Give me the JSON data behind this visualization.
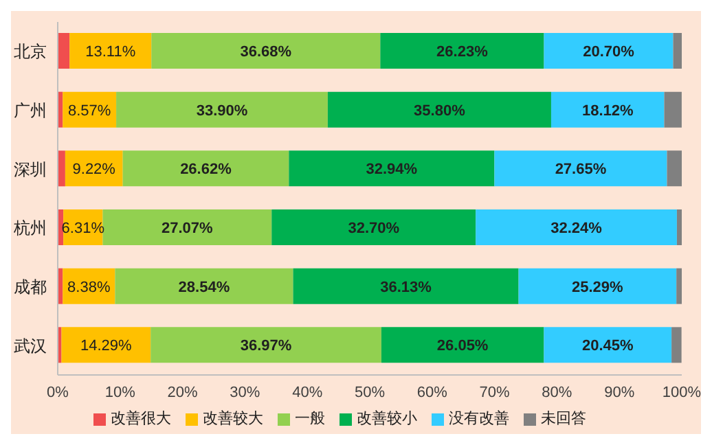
{
  "chart_data": {
    "type": "bar",
    "orientation": "horizontal",
    "stacked": true,
    "categories": [
      "北京",
      "广州",
      "深圳",
      "杭州",
      "成都",
      "武汉"
    ],
    "series": [
      {
        "name": "改善很大",
        "color": "#f04e4e",
        "values": [
          1.9,
          0.8,
          1.2,
          0.9,
          0.8,
          0.6
        ],
        "value_labels": [
          null,
          null,
          null,
          null,
          null,
          null
        ]
      },
      {
        "name": "改善较大",
        "color": "#ffc000",
        "values": [
          13.11,
          8.57,
          9.22,
          6.31,
          8.38,
          14.29
        ],
        "value_labels": [
          "13.11%",
          "8.57%",
          "9.22%",
          "6.31%",
          "8.38%",
          "14.29%"
        ]
      },
      {
        "name": "一般",
        "color": "#92d050",
        "values": [
          36.68,
          33.9,
          26.62,
          27.07,
          28.54,
          36.97
        ],
        "value_labels": [
          "36.68%",
          "33.90%",
          "26.62%",
          "27.07%",
          "28.54%",
          "36.97%"
        ]
      },
      {
        "name": "改善较小",
        "color": "#00b050",
        "values": [
          26.23,
          35.8,
          32.94,
          32.7,
          36.13,
          26.05
        ],
        "value_labels": [
          "26.23%",
          "35.80%",
          "32.94%",
          "32.70%",
          "36.13%",
          "26.05%"
        ]
      },
      {
        "name": "没有改善",
        "color": "#33ccff",
        "values": [
          20.7,
          18.12,
          27.65,
          32.24,
          25.29,
          20.45
        ],
        "value_labels": [
          "20.70%",
          "18.12%",
          "27.65%",
          "32.24%",
          "25.29%",
          "20.45%"
        ]
      },
      {
        "name": "未回答",
        "color": "#808080",
        "values": [
          1.4,
          2.8,
          2.4,
          0.8,
          0.9,
          1.6
        ],
        "value_labels": [
          null,
          null,
          null,
          null,
          null,
          null
        ]
      }
    ],
    "xlim": [
      0,
      100
    ],
    "xticks": [
      {
        "value": 0,
        "label": "0%"
      },
      {
        "value": 10,
        "label": "10%"
      },
      {
        "value": 20,
        "label": "20%"
      },
      {
        "value": 30,
        "label": "30%"
      },
      {
        "value": 40,
        "label": "40%"
      },
      {
        "value": 50,
        "label": "50%"
      },
      {
        "value": 60,
        "label": "60%"
      },
      {
        "value": 70,
        "label": "70%"
      },
      {
        "value": 80,
        "label": "80%"
      },
      {
        "value": 90,
        "label": "90%"
      },
      {
        "value": 100,
        "label": "100%"
      }
    ],
    "legend": "bottom",
    "grid": false
  }
}
